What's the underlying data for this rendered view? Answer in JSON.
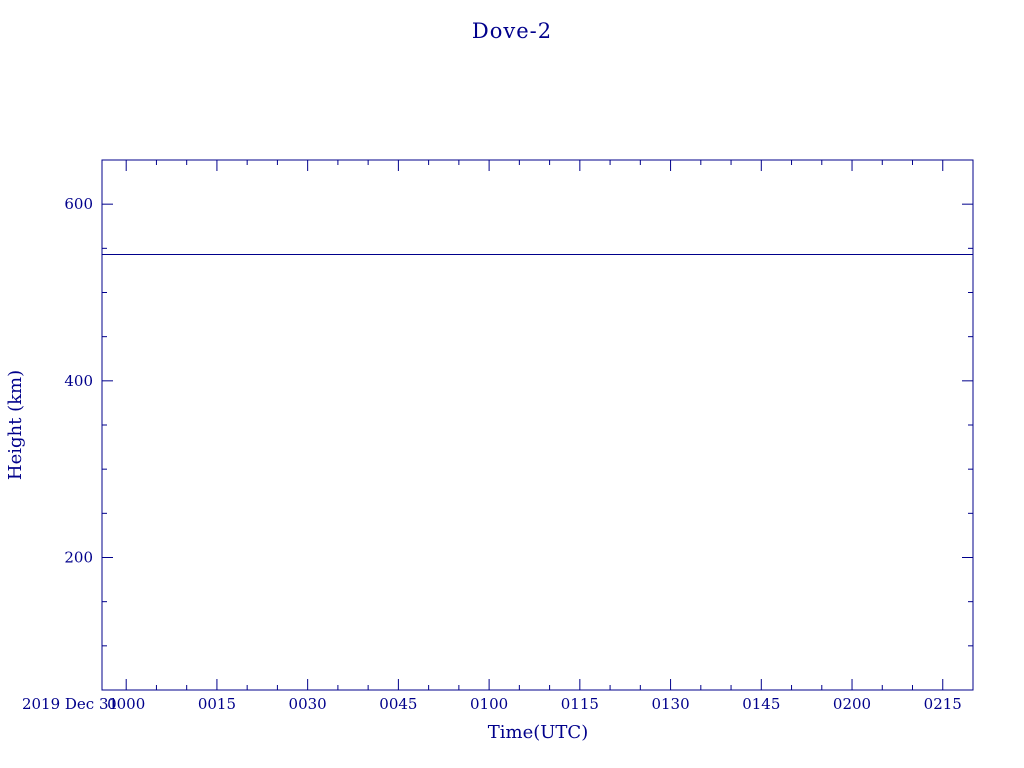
{
  "chart_data": {
    "type": "line",
    "title": "Dove-2",
    "xlabel": "Time(UTC)",
    "ylabel": "Height (km)",
    "date_label": "2019 Dec 31",
    "x_tick_labels": [
      "0000",
      "0015",
      "0030",
      "0045",
      "0100",
      "0115",
      "0130",
      "0145",
      "0200",
      "0215"
    ],
    "x_tick_minutes": [
      0,
      15,
      30,
      45,
      60,
      75,
      90,
      105,
      120,
      135
    ],
    "x_range_minutes": [
      -4,
      140
    ],
    "y_tick_labels": [
      "200",
      "400",
      "600"
    ],
    "y_ticks": [
      200,
      400,
      600
    ],
    "ylim": [
      50,
      650
    ],
    "y_minor_step": 50,
    "x_minor_step_minutes": 5,
    "grid": false,
    "series": [
      {
        "x": [
          -4,
          140
        ],
        "y": [
          543,
          543
        ]
      }
    ],
    "colors": {
      "axis": "#00008b",
      "line": "#00008b"
    }
  }
}
